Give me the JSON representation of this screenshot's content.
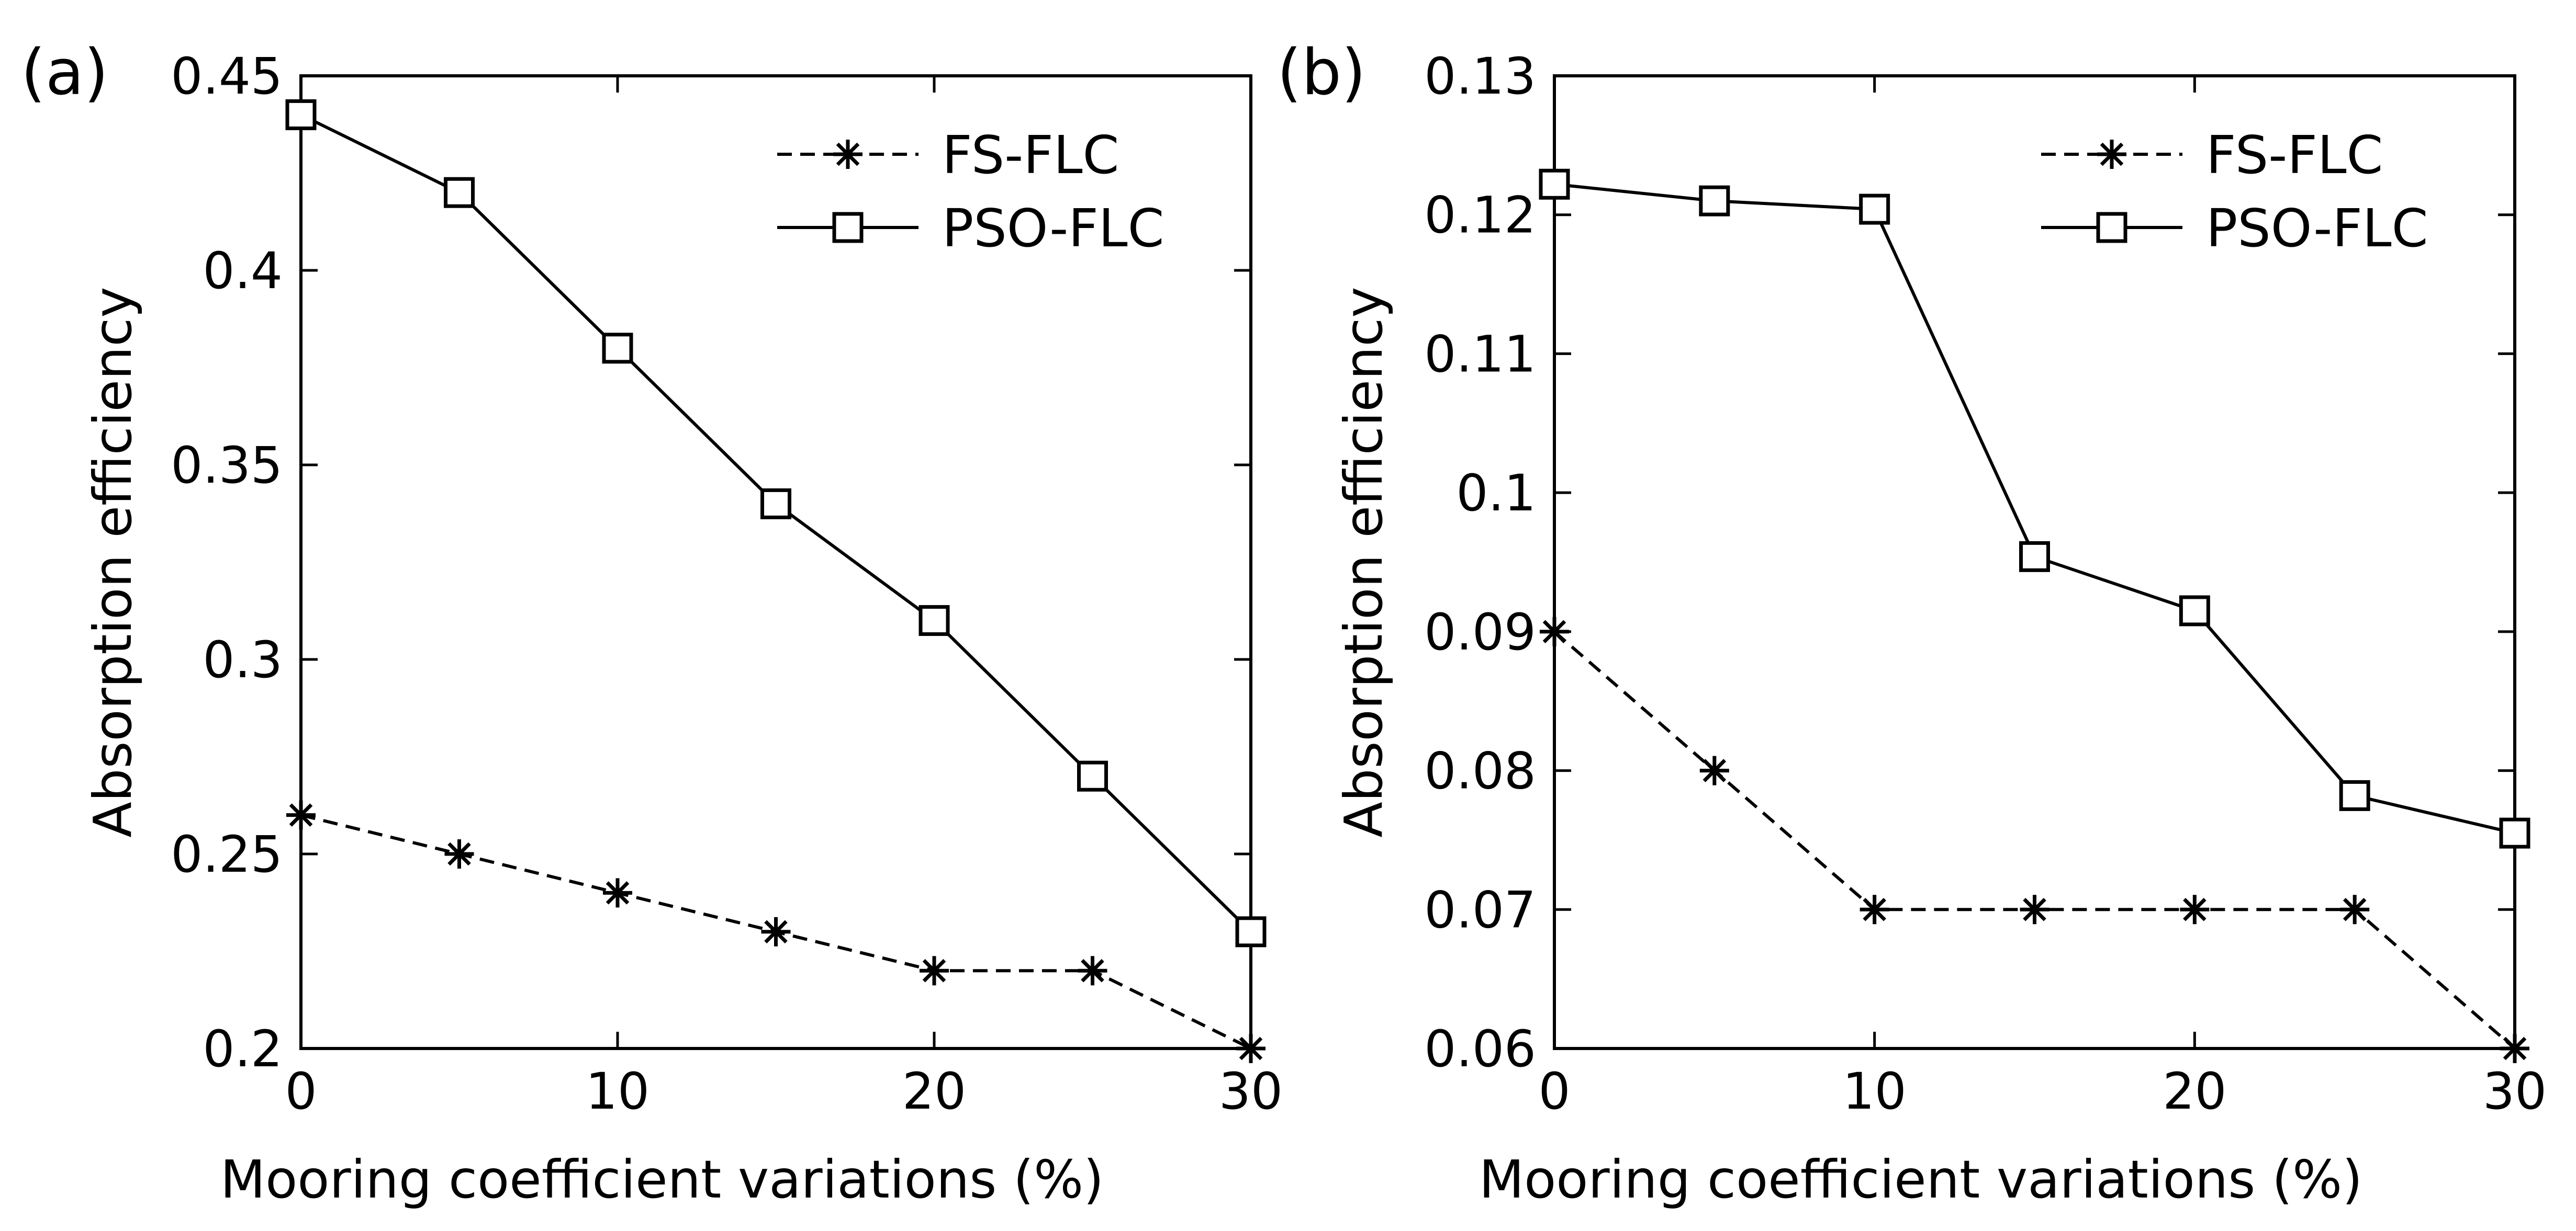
{
  "chart_data": [
    {
      "panel_label": "(a)",
      "type": "line",
      "xlabel": "Mooring coefficient variations (%)",
      "ylabel": "Absorption efficiency",
      "xlim": [
        0,
        30
      ],
      "ylim": [
        0.2,
        0.45
      ],
      "xticks": [
        0,
        10,
        20,
        30
      ],
      "xtick_labels": [
        "0",
        "10",
        "20",
        "30"
      ],
      "yticks": [
        0.2,
        0.25,
        0.3,
        0.35,
        0.4,
        0.45
      ],
      "ytick_labels": [
        "0.2",
        "0.25",
        "0.3",
        "0.35",
        "0.4",
        "0.45"
      ],
      "grid": false,
      "legend_position": "top-right",
      "x": [
        0,
        5,
        10,
        15,
        20,
        25,
        30
      ],
      "series": [
        {
          "name": "FS-FLC",
          "style": "dashed",
          "marker": "asterisk",
          "values": [
            0.26,
            0.25,
            0.24,
            0.23,
            0.22,
            0.22,
            0.2
          ]
        },
        {
          "name": "PSO-FLC",
          "style": "solid",
          "marker": "square",
          "values": [
            0.44,
            0.42,
            0.38,
            0.34,
            0.31,
            0.27,
            0.23
          ]
        }
      ]
    },
    {
      "panel_label": "(b)",
      "type": "line",
      "xlabel": "Mooring coefficient variations (%)",
      "ylabel": "Absorption efficiency",
      "xlim": [
        0,
        30
      ],
      "ylim": [
        0.06,
        0.13
      ],
      "xticks": [
        0,
        10,
        20,
        30
      ],
      "xtick_labels": [
        "0",
        "10",
        "20",
        "30"
      ],
      "yticks": [
        0.06,
        0.07,
        0.08,
        0.09,
        0.1,
        0.11,
        0.12,
        0.13
      ],
      "ytick_labels": [
        "0.06",
        "0.07",
        "0.08",
        "0.09",
        "0.1",
        "0.11",
        "0.12",
        "0.13"
      ],
      "grid": false,
      "legend_position": "top-right",
      "x": [
        0,
        5,
        10,
        15,
        20,
        25,
        30
      ],
      "series": [
        {
          "name": "FS-FLC",
          "style": "dashed",
          "marker": "asterisk",
          "values": [
            0.09,
            0.08,
            0.07,
            0.07,
            0.07,
            0.07,
            0.06
          ]
        },
        {
          "name": "PSO-FLC",
          "style": "solid",
          "marker": "square",
          "values": [
            0.1222,
            0.121,
            0.1204,
            0.0954,
            0.0915,
            0.0782,
            0.0755
          ]
        }
      ]
    }
  ]
}
